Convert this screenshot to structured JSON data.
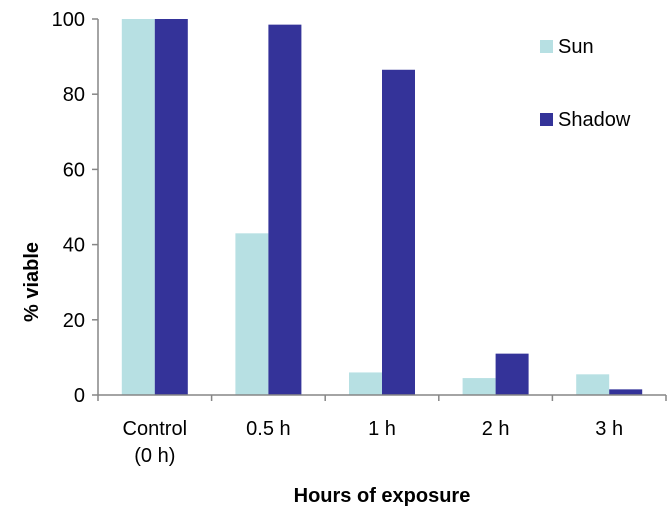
{
  "chart_data": {
    "type": "bar",
    "categories": [
      [
        "Control",
        "(0 h)"
      ],
      [
        "0.5 h"
      ],
      [
        "1 h"
      ],
      [
        "2 h"
      ],
      [
        "3 h"
      ]
    ],
    "series": [
      {
        "name": "Sun",
        "color": "#b7e0e3",
        "values": [
          100,
          43,
          6,
          4.5,
          5.5
        ]
      },
      {
        "name": "Shadow",
        "color": "#343399",
        "values": [
          100,
          98.5,
          86.5,
          11,
          1.5
        ]
      }
    ],
    "title": "",
    "xlabel": "Hours of exposure",
    "ylabel": "% viable",
    "ylim": [
      0,
      100
    ],
    "yticks": [
      0,
      20,
      40,
      60,
      80,
      100
    ],
    "grid": false,
    "legend_position": "top-right"
  }
}
